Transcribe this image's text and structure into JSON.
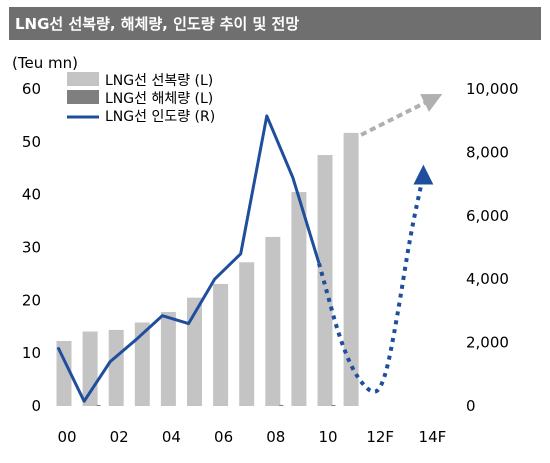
{
  "title": "LNG선 선복량, 해체량, 인도량 추이 및 전망",
  "colors": {
    "title_bg": "#6f6f6f",
    "capacity": "#c4c4c4",
    "scrapping": "#7f7f7f",
    "deliveries": "#1f4e9c",
    "forecast_arrow": "#b0b0b0"
  },
  "chart_data": {
    "type": "bar",
    "title": "LNG선 선복량, 해체량, 인도량 추이 및 전망",
    "unit_label": "(Teu mn)",
    "x_tick_labels": [
      "00",
      "02",
      "04",
      "06",
      "08",
      "10",
      "12F",
      "14F"
    ],
    "x": [
      2000,
      2001,
      2002,
      2003,
      2004,
      2005,
      2006,
      2007,
      2008,
      2009,
      2010,
      2011,
      2012,
      2013,
      2014
    ],
    "left_axis": {
      "ylim": [
        0,
        60
      ],
      "ticks": [
        "0",
        "10",
        "20",
        "30",
        "40",
        "50",
        "60"
      ]
    },
    "right_axis": {
      "ylim": [
        0,
        10000
      ],
      "ticks": [
        "0",
        "2,000",
        "4,000",
        "6,000",
        "8,000",
        "10,000"
      ]
    },
    "legend": [
      "LNG선 선복량 (L)",
      "LNG선 해체량 (L)",
      "LNG선 인도량 (R)"
    ],
    "legend_position": "top-left",
    "series": [
      {
        "name": "LNG선 선복량 (L)",
        "type": "bar",
        "axis": "left",
        "x": [
          2000,
          2001,
          2002,
          2003,
          2004,
          2005,
          2006,
          2007,
          2008,
          2009,
          2010,
          2011
        ],
        "values": [
          12.3,
          14.1,
          14.4,
          15.8,
          17.8,
          20.5,
          23.1,
          27.2,
          32.0,
          40.5,
          47.5,
          51.7
        ]
      },
      {
        "name": "LNG선 해체량 (L)",
        "type": "bar",
        "axis": "left",
        "x": [
          2000,
          2001,
          2002,
          2003,
          2004,
          2005,
          2006,
          2007,
          2008,
          2009,
          2010,
          2011
        ],
        "values": [
          0,
          0.1,
          0,
          0,
          0,
          0,
          0,
          0,
          0.2,
          0,
          0.1,
          0
        ]
      },
      {
        "name": "LNG선 인도량 (R)",
        "type": "line",
        "axis": "right",
        "x": [
          2000,
          2001,
          2002,
          2003,
          2004,
          2005,
          2006,
          2007,
          2008,
          2009,
          2010
        ],
        "values": [
          1850,
          150,
          1400,
          2100,
          2850,
          2600,
          4000,
          4800,
          9150,
          7200,
          4500
        ]
      },
      {
        "name": "LNG선 인도량 (R) forecast",
        "type": "dotted-line",
        "axis": "right",
        "x": [
          2010,
          2011,
          2012,
          2012.5,
          2013,
          2013.5,
          2014
        ],
        "values": [
          4500,
          1500,
          300,
          700,
          2800,
          5400,
          7300
        ]
      }
    ]
  }
}
